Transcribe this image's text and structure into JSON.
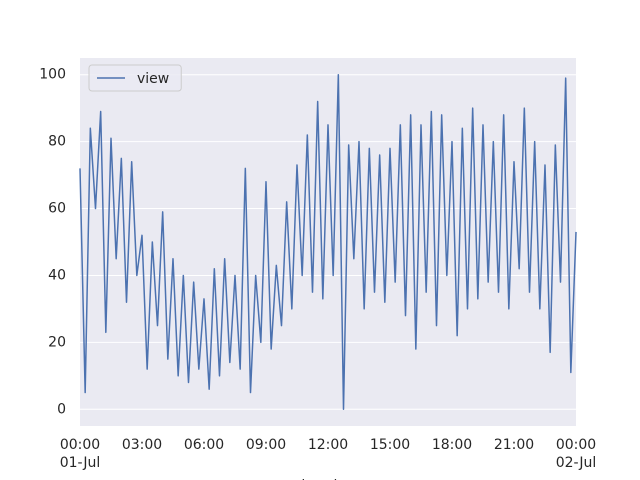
{
  "chart_data": {
    "type": "line",
    "xlabel": "datetime",
    "x": [
      "01-Jul 00:00",
      "01-Jul 00:15",
      "01-Jul 00:30",
      "01-Jul 00:45",
      "01-Jul 01:00",
      "01-Jul 01:15",
      "01-Jul 01:30",
      "01-Jul 01:45",
      "01-Jul 02:00",
      "01-Jul 02:15",
      "01-Jul 02:30",
      "01-Jul 02:45",
      "01-Jul 03:00",
      "01-Jul 03:15",
      "01-Jul 03:30",
      "01-Jul 03:45",
      "01-Jul 04:00",
      "01-Jul 04:15",
      "01-Jul 04:30",
      "01-Jul 04:45",
      "01-Jul 05:00",
      "01-Jul 05:15",
      "01-Jul 05:30",
      "01-Jul 05:45",
      "01-Jul 06:00",
      "01-Jul 06:15",
      "01-Jul 06:30",
      "01-Jul 06:45",
      "01-Jul 07:00",
      "01-Jul 07:15",
      "01-Jul 07:30",
      "01-Jul 07:45",
      "01-Jul 08:00",
      "01-Jul 08:15",
      "01-Jul 08:30",
      "01-Jul 08:45",
      "01-Jul 09:00",
      "01-Jul 09:15",
      "01-Jul 09:30",
      "01-Jul 09:45",
      "01-Jul 10:00",
      "01-Jul 10:15",
      "01-Jul 10:30",
      "01-Jul 10:45",
      "01-Jul 11:00",
      "01-Jul 11:15",
      "01-Jul 11:30",
      "01-Jul 11:45",
      "01-Jul 12:00",
      "01-Jul 12:15",
      "01-Jul 12:30",
      "01-Jul 12:45",
      "01-Jul 13:00",
      "01-Jul 13:15",
      "01-Jul 13:30",
      "01-Jul 13:45",
      "01-Jul 14:00",
      "01-Jul 14:15",
      "01-Jul 14:30",
      "01-Jul 14:45",
      "01-Jul 15:00",
      "01-Jul 15:15",
      "01-Jul 15:30",
      "01-Jul 15:45",
      "01-Jul 16:00",
      "01-Jul 16:15",
      "01-Jul 16:30",
      "01-Jul 16:45",
      "01-Jul 17:00",
      "01-Jul 17:15",
      "01-Jul 17:30",
      "01-Jul 17:45",
      "01-Jul 18:00",
      "01-Jul 18:15",
      "01-Jul 18:30",
      "01-Jul 18:45",
      "01-Jul 19:00",
      "01-Jul 19:15",
      "01-Jul 19:30",
      "01-Jul 19:45",
      "01-Jul 20:00",
      "01-Jul 20:15",
      "01-Jul 20:30",
      "01-Jul 20:45",
      "01-Jul 21:00",
      "01-Jul 21:15",
      "01-Jul 21:30",
      "01-Jul 21:45",
      "01-Jul 22:00",
      "01-Jul 22:15",
      "01-Jul 22:30",
      "01-Jul 22:45",
      "01-Jul 23:00",
      "01-Jul 23:15",
      "01-Jul 23:30",
      "01-Jul 23:45",
      "02-Jul 00:00"
    ],
    "series": [
      {
        "name": "view",
        "color": "#4c72b0",
        "values": [
          72,
          5,
          84,
          60,
          89,
          23,
          81,
          45,
          75,
          32,
          74,
          40,
          52,
          12,
          50,
          25,
          59,
          15,
          45,
          10,
          40,
          8,
          38,
          12,
          33,
          6,
          42,
          10,
          45,
          14,
          40,
          12,
          72,
          5,
          40,
          20,
          68,
          18,
          43,
          25,
          62,
          30,
          73,
          40,
          82,
          35,
          92,
          33,
          85,
          40,
          100,
          0,
          79,
          45,
          80,
          30,
          78,
          35,
          76,
          32,
          78,
          38,
          85,
          28,
          88,
          18,
          85,
          35,
          89,
          25,
          88,
          40,
          80,
          22,
          84,
          30,
          90,
          33,
          85,
          38,
          80,
          35,
          88,
          30,
          74,
          42,
          90,
          35,
          80,
          30,
          73,
          17,
          79,
          38,
          99,
          11,
          53
        ]
      }
    ],
    "xlim": [
      "01-Jul 00:00",
      "02-Jul 00:00"
    ],
    "xticks": [
      {
        "value": "01-Jul 00:00",
        "label": "00:00\n01-Jul"
      },
      {
        "value": "01-Jul 03:00",
        "label": "03:00"
      },
      {
        "value": "01-Jul 06:00",
        "label": "06:00"
      },
      {
        "value": "01-Jul 09:00",
        "label": "09:00"
      },
      {
        "value": "01-Jul 12:00",
        "label": "12:00"
      },
      {
        "value": "01-Jul 15:00",
        "label": "15:00"
      },
      {
        "value": "01-Jul 18:00",
        "label": "18:00"
      },
      {
        "value": "01-Jul 21:00",
        "label": "21:00"
      },
      {
        "value": "02-Jul 00:00",
        "label": "00:00\n02-Jul"
      }
    ],
    "ylim": [
      -5,
      105
    ],
    "yticks": [
      0,
      20,
      40,
      60,
      80,
      100
    ],
    "grid": "y",
    "legend": "upper left"
  }
}
